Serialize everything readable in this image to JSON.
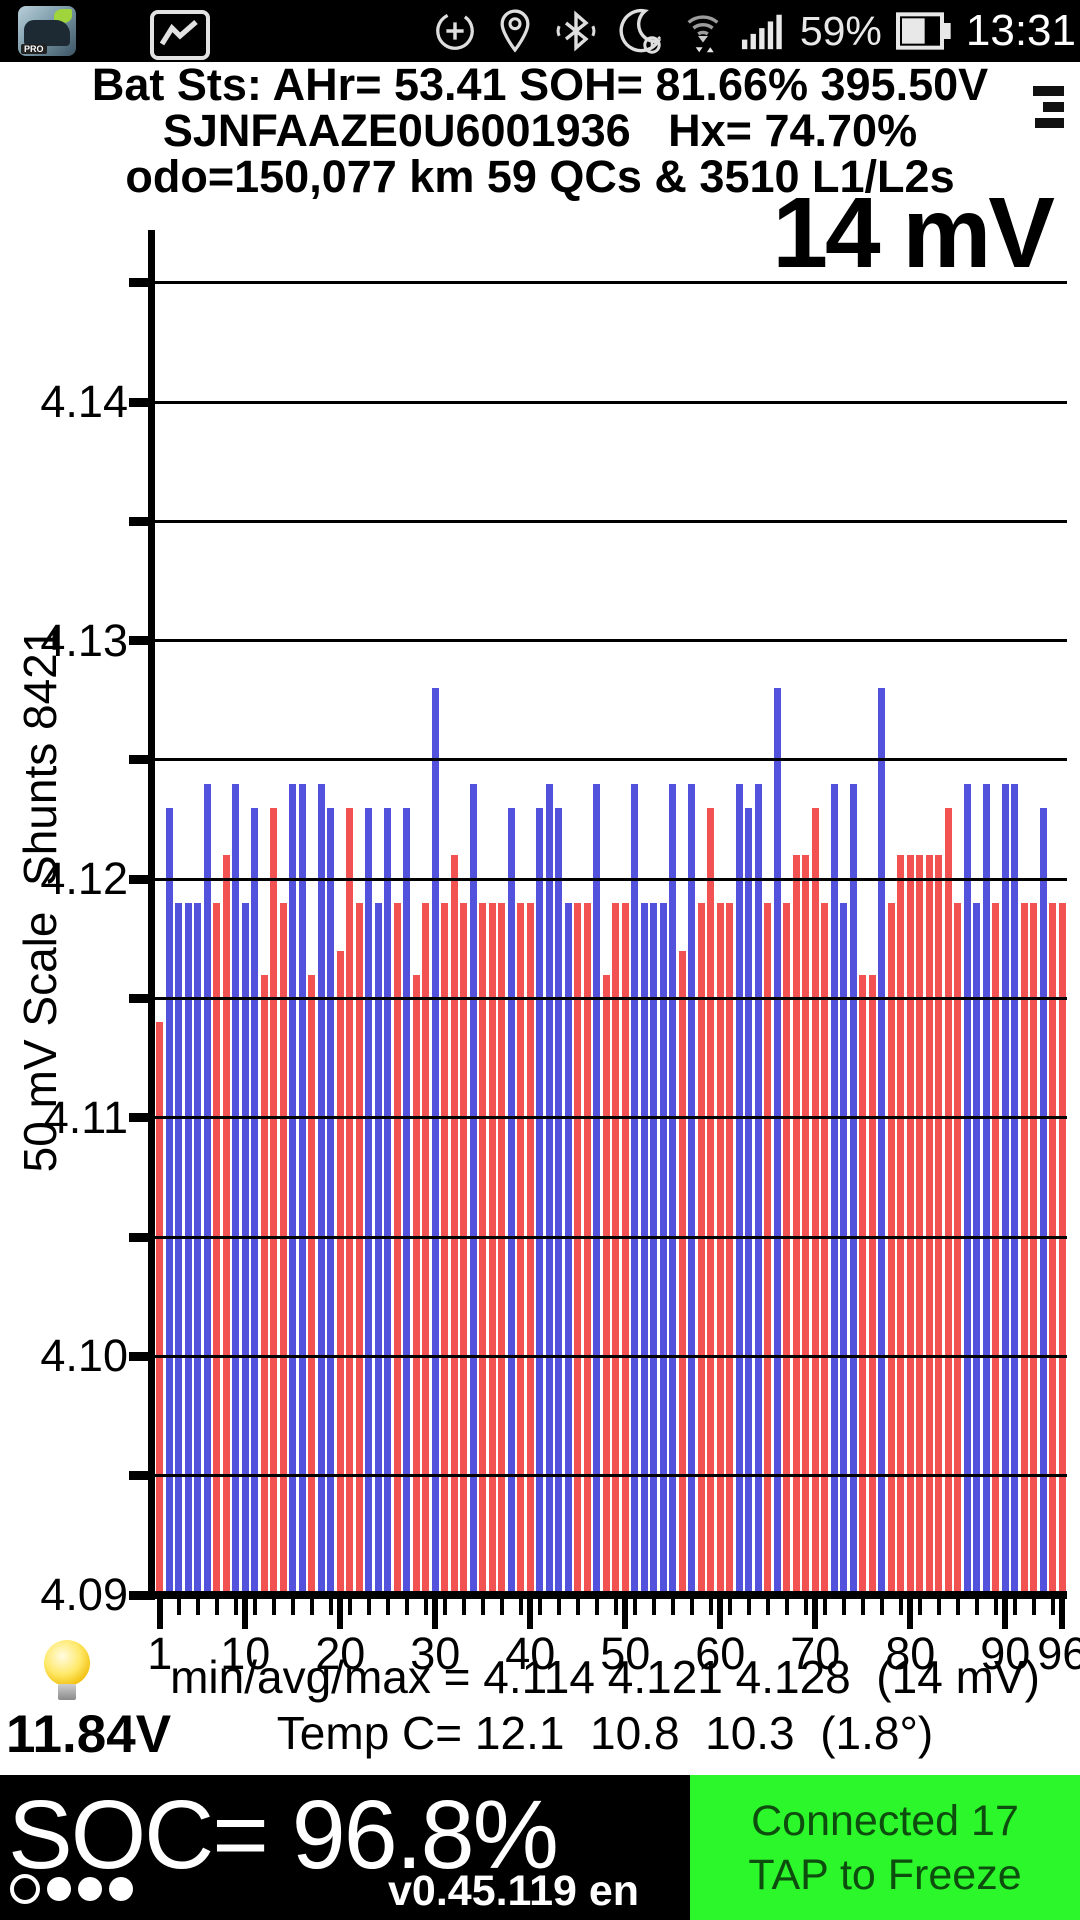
{
  "status_bar": {
    "time": "13:31",
    "battery_percent": "59%",
    "icons": [
      "leafspy-app-icon",
      "screenshot-icon",
      "data-saver-icon",
      "location-icon",
      "bluetooth-icon",
      "night-mode-alarm-icon",
      "wifi-icon",
      "signal-strength-icon",
      "battery-icon"
    ]
  },
  "header": {
    "line1": "Bat Sts: AHr= 53.41 SOH= 81.66% 395.50V",
    "line2": "SJNFAAZE0U6001936   Hx= 74.70%",
    "line3": "odo=150,077 km 59 QCs & 3510 L1/L2s"
  },
  "chart_data": {
    "type": "bar",
    "annotation": "14 mV",
    "ylabel": "50 mV Scale  Shunts 8421",
    "ylim": [
      4.09,
      4.1475
    ],
    "grid_step": 0.005,
    "cell_count": 96,
    "y_tick_labels": [
      4.14,
      4.13,
      4.12,
      4.11,
      4.1,
      4.09
    ],
    "x_tick_labels": [
      1,
      10,
      20,
      30,
      40,
      50,
      60,
      70,
      80,
      90,
      96
    ],
    "bar_colors": {
      "r": "#f25252",
      "b": "#5252dd"
    },
    "shunt_pattern": "rbbbbbrrbbbrrrbbrbbrrrbbbrbrrbrrrbrrrbrrbbbbrrbrrrbbbbbrbrrrrbbbrbrrrrrbbbrrbrrrrrrrrbbbrbbrrbrr",
    "series": [
      {
        "name": "cell_voltage_V",
        "values": [
          4.114,
          4.123,
          4.119,
          4.119,
          4.119,
          4.124,
          4.119,
          4.121,
          4.124,
          4.119,
          4.123,
          4.116,
          4.123,
          4.119,
          4.124,
          4.124,
          4.116,
          4.124,
          4.123,
          4.117,
          4.123,
          4.119,
          4.123,
          4.119,
          4.123,
          4.119,
          4.123,
          4.116,
          4.119,
          4.128,
          4.119,
          4.121,
          4.119,
          4.124,
          4.119,
          4.119,
          4.119,
          4.123,
          4.119,
          4.119,
          4.123,
          4.124,
          4.123,
          4.119,
          4.119,
          4.119,
          4.124,
          4.116,
          4.119,
          4.119,
          4.124,
          4.119,
          4.119,
          4.119,
          4.124,
          4.117,
          4.124,
          4.119,
          4.123,
          4.119,
          4.119,
          4.124,
          4.123,
          4.124,
          4.119,
          4.128,
          4.119,
          4.121,
          4.121,
          4.123,
          4.119,
          4.124,
          4.119,
          4.124,
          4.116,
          4.116,
          4.128,
          4.119,
          4.121,
          4.121,
          4.121,
          4.121,
          4.121,
          4.123,
          4.119,
          4.124,
          4.119,
          4.124,
          4.119,
          4.124,
          4.124,
          4.119,
          4.119,
          4.123,
          4.119,
          4.119
        ]
      }
    ],
    "stats": {
      "min": 4.114,
      "avg": 4.121,
      "max": 4.128,
      "spread_mV": 14
    }
  },
  "bottom_info": {
    "minavgmax": "min/avg/max = 4.114 4.121 4.128  (14 mV)",
    "aux_voltage": "11.84V",
    "temp": "Temp C= 12.1  10.8  10.3  (1.8°)"
  },
  "footer": {
    "soc": "SOC= 96.8%",
    "version": "v0.45.119 en",
    "connection_line1": "Connected 17",
    "connection_line2": "TAP to Freeze",
    "gids_dots": [
      "open",
      "filled",
      "filled",
      "filled"
    ],
    "connected_green": "#2bf72b"
  }
}
